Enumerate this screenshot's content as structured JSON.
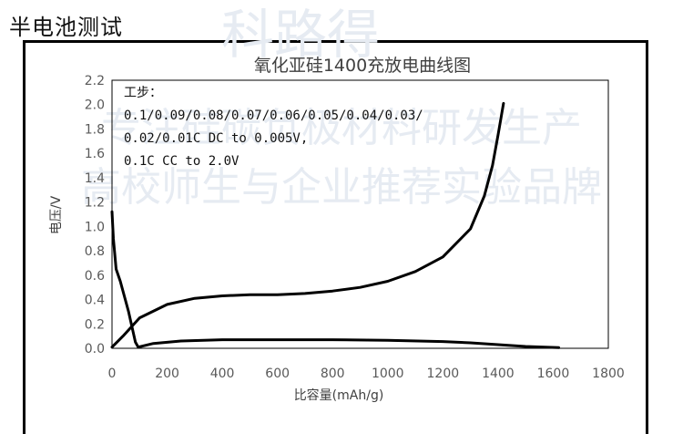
{
  "page_heading": "半电池测试",
  "chart_data": {
    "type": "line",
    "title": "氧化亚硅1400充放电曲线图",
    "xlabel": "比容量(mAh/g)",
    "ylabel": "电压/V",
    "xlim": [
      0,
      1800
    ],
    "ylim": [
      0,
      2.2
    ],
    "x_ticks": [
      "0",
      "200",
      "400",
      "600",
      "800",
      "1000",
      "1200",
      "1400",
      "1600",
      "1800"
    ],
    "y_ticks": [
      "0.0",
      "0.2",
      "0.4",
      "0.6",
      "0.8",
      "1.0",
      "1.2",
      "1.4",
      "1.6",
      "1.8",
      "2.0",
      "2.2"
    ],
    "grid": false,
    "annotation": [
      "工步：",
      "0.1/0.09/0.08/0.07/0.06/0.05/0.04/0.03/",
      "0.02/0.01C DC to 0.005V,",
      "0.1C CC to 2.0V"
    ],
    "series": [
      {
        "type": "discharge",
        "color": "#000000",
        "x": [
          0,
          5,
          15,
          30,
          60,
          85,
          95,
          150,
          250,
          400,
          600,
          800,
          1000,
          1200,
          1300,
          1400,
          1500,
          1620
        ],
        "y": [
          1.12,
          0.9,
          0.65,
          0.55,
          0.3,
          0.05,
          0.01,
          0.04,
          0.06,
          0.07,
          0.07,
          0.07,
          0.065,
          0.055,
          0.045,
          0.03,
          0.015,
          0.005
        ]
      },
      {
        "type": "charge",
        "color": "#000000",
        "x": [
          0,
          40,
          100,
          200,
          300,
          400,
          500,
          600,
          700,
          800,
          900,
          1000,
          1100,
          1200,
          1300,
          1350,
          1380,
          1400,
          1420
        ],
        "y": [
          0.01,
          0.1,
          0.25,
          0.36,
          0.41,
          0.43,
          0.44,
          0.44,
          0.45,
          0.47,
          0.5,
          0.55,
          0.63,
          0.75,
          0.98,
          1.25,
          1.5,
          1.75,
          2.01
        ]
      }
    ]
  },
  "watermark": {
    "line1": "科路得",
    "line2": "专注硅碳负极材料研发生产",
    "line3": "高校师生与企业推荐实验品牌"
  }
}
